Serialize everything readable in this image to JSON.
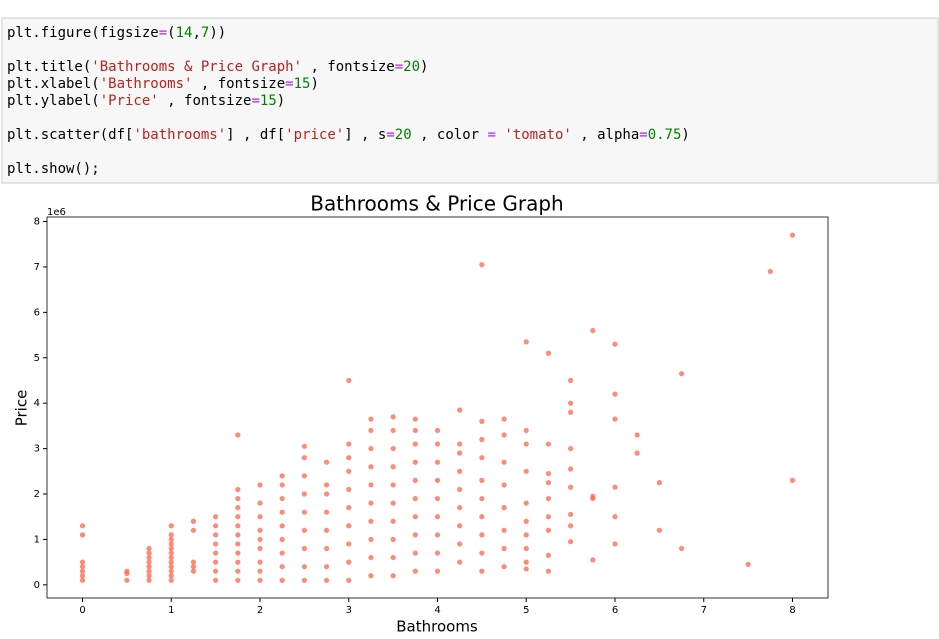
{
  "code": {
    "lines": [
      [
        {
          "text": "plt.figure(figsize",
          "color": "#000000"
        },
        {
          "text": "=",
          "color": "#aa22ff"
        },
        {
          "text": "(",
          "color": "#000000"
        },
        {
          "text": "14",
          "color": "#008000"
        },
        {
          "text": ",",
          "color": "#000000"
        },
        {
          "text": "7",
          "color": "#008000"
        },
        {
          "text": "))",
          "color": "#000000"
        }
      ],
      [],
      [
        {
          "text": "plt.title(",
          "color": "#000000"
        },
        {
          "text": "'Bathrooms & Price Graph'",
          "color": "#ba2121"
        },
        {
          "text": " , fontsize",
          "color": "#000000"
        },
        {
          "text": "=",
          "color": "#aa22ff"
        },
        {
          "text": "20",
          "color": "#008000"
        },
        {
          "text": ")",
          "color": "#000000"
        }
      ],
      [
        {
          "text": "plt.xlabel(",
          "color": "#000000"
        },
        {
          "text": "'Bathrooms'",
          "color": "#ba2121"
        },
        {
          "text": " , fontsize",
          "color": "#000000"
        },
        {
          "text": "=",
          "color": "#aa22ff"
        },
        {
          "text": "15",
          "color": "#008000"
        },
        {
          "text": ")",
          "color": "#000000"
        }
      ],
      [
        {
          "text": "plt.ylabel(",
          "color": "#000000"
        },
        {
          "text": "'Price'",
          "color": "#ba2121"
        },
        {
          "text": " , fontsize",
          "color": "#000000"
        },
        {
          "text": "=",
          "color": "#aa22ff"
        },
        {
          "text": "15",
          "color": "#008000"
        },
        {
          "text": ")",
          "color": "#000000"
        }
      ],
      [],
      [
        {
          "text": "plt.scatter(df[",
          "color": "#000000"
        },
        {
          "text": "'bathrooms'",
          "color": "#ba2121"
        },
        {
          "text": "] , df[",
          "color": "#000000"
        },
        {
          "text": "'price'",
          "color": "#ba2121"
        },
        {
          "text": "] , s",
          "color": "#000000"
        },
        {
          "text": "=",
          "color": "#aa22ff"
        },
        {
          "text": "20",
          "color": "#008000"
        },
        {
          "text": " , color ",
          "color": "#000000"
        },
        {
          "text": "=",
          "color": "#aa22ff"
        },
        {
          "text": " ",
          "color": "#000000"
        },
        {
          "text": "'tomato'",
          "color": "#ba2121"
        },
        {
          "text": " , alpha",
          "color": "#000000"
        },
        {
          "text": "=",
          "color": "#aa22ff"
        },
        {
          "text": "0.75",
          "color": "#008000"
        },
        {
          "text": ")",
          "color": "#000000"
        }
      ],
      [],
      [
        {
          "text": "plt.show();",
          "color": "#000000"
        }
      ]
    ]
  },
  "chart_data": {
    "type": "scatter",
    "title": "Bathrooms & Price Graph",
    "x_label": "Bathrooms",
    "y_label": "Price",
    "y_offset_label": "1e6",
    "xlim": [
      -0.4,
      8.4
    ],
    "ylim": [
      -0.29,
      8.1
    ],
    "xticks": [
      0,
      1,
      2,
      3,
      4,
      5,
      6,
      7,
      8
    ],
    "yticks": [
      0,
      1,
      2,
      3,
      4,
      5,
      6,
      7,
      8
    ],
    "series": [
      {
        "color": "tomato",
        "alpha": 0.75,
        "x": [
          0,
          0,
          0,
          0,
          0,
          0,
          0,
          0.5,
          0.5,
          0.5,
          0.75,
          0.75,
          0.75,
          0.75,
          0.75,
          0.75,
          0.75,
          0.75,
          1,
          1,
          1,
          1,
          1,
          1,
          1,
          1,
          1,
          1,
          1,
          1,
          1.25,
          1.25,
          1.25,
          1.25,
          1.25,
          1.5,
          1.5,
          1.5,
          1.5,
          1.5,
          1.5,
          1.5,
          1.5,
          1.75,
          1.75,
          1.75,
          1.75,
          1.75,
          1.75,
          1.75,
          1.75,
          1.75,
          1.75,
          1.75,
          1.75,
          2,
          2,
          2,
          2,
          2,
          2,
          2,
          2,
          2,
          2.25,
          2.25,
          2.25,
          2.25,
          2.25,
          2.25,
          2.25,
          2.25,
          2.25,
          2.5,
          2.5,
          2.5,
          2.5,
          2.5,
          2.5,
          2.5,
          2.5,
          2.5,
          2.75,
          2.75,
          2.75,
          2.75,
          2.75,
          2.75,
          2.75,
          2.75,
          3,
          3,
          3,
          3,
          3,
          3,
          3,
          3,
          3,
          3,
          3.25,
          3.25,
          3.25,
          3.25,
          3.25,
          3.25,
          3.25,
          3.25,
          3.25,
          3.25,
          3.5,
          3.5,
          3.5,
          3.5,
          3.5,
          3.5,
          3.5,
          3.5,
          3.5,
          3.5,
          3.75,
          3.75,
          3.75,
          3.75,
          3.75,
          3.75,
          3.75,
          3.75,
          3.75,
          3.75,
          4,
          4,
          4,
          4,
          4,
          4,
          4,
          4,
          4,
          4.25,
          4.25,
          4.25,
          4.25,
          4.25,
          4.25,
          4.25,
          4.25,
          4.25,
          4.5,
          4.5,
          4.5,
          4.5,
          4.5,
          4.5,
          4.5,
          4.5,
          4.5,
          4.5,
          4.75,
          4.75,
          4.75,
          4.75,
          4.75,
          4.75,
          4.75,
          4.75,
          5,
          5,
          5,
          5,
          5,
          5,
          5,
          5,
          5,
          5,
          5.25,
          5.25,
          5.25,
          5.25,
          5.25,
          5.25,
          5.25,
          5.25,
          5.25,
          5.5,
          5.5,
          5.5,
          5.5,
          5.5,
          5.5,
          5.5,
          5.5,
          5.5,
          5.75,
          5.75,
          5.75,
          5.75,
          6,
          6,
          6,
          6,
          6,
          6,
          6.25,
          6.25,
          6.5,
          6.5,
          6.75,
          6.75,
          7.5,
          7.75,
          8,
          8
        ],
        "values": [
          0.1,
          0.2,
          0.3,
          0.4,
          0.5,
          1.1,
          1.3,
          0.1,
          0.25,
          0.3,
          0.1,
          0.2,
          0.3,
          0.4,
          0.5,
          0.6,
          0.7,
          0.8,
          0.1,
          0.2,
          0.3,
          0.4,
          0.5,
          0.6,
          0.7,
          0.8,
          0.9,
          1.0,
          1.1,
          1.3,
          0.3,
          0.4,
          0.5,
          1.2,
          1.4,
          0.1,
          0.3,
          0.5,
          0.7,
          0.9,
          1.1,
          1.3,
          1.5,
          0.1,
          0.3,
          0.5,
          0.7,
          0.9,
          1.1,
          1.3,
          1.5,
          1.7,
          1.9,
          2.1,
          3.3,
          0.1,
          0.3,
          0.5,
          0.8,
          1.0,
          1.2,
          1.5,
          1.8,
          2.2,
          0.1,
          0.4,
          0.7,
          1.0,
          1.3,
          1.6,
          1.9,
          2.2,
          2.4,
          0.1,
          0.4,
          0.8,
          1.2,
          1.6,
          2.0,
          2.4,
          2.8,
          3.05,
          0.1,
          0.4,
          0.8,
          1.2,
          1.6,
          2.0,
          2.2,
          2.7,
          0.1,
          0.5,
          0.9,
          1.3,
          1.7,
          2.1,
          2.5,
          2.8,
          3.1,
          4.5,
          0.2,
          0.6,
          1.0,
          1.4,
          1.8,
          2.2,
          2.6,
          3.0,
          3.4,
          3.65,
          0.2,
          0.6,
          1.0,
          1.4,
          1.8,
          2.2,
          2.6,
          3.0,
          3.4,
          3.7,
          0.3,
          0.7,
          1.1,
          1.5,
          1.9,
          2.3,
          2.7,
          3.1,
          3.4,
          3.65,
          0.3,
          0.7,
          1.1,
          1.5,
          1.9,
          2.3,
          2.7,
          3.1,
          3.4,
          0.5,
          0.9,
          1.3,
          1.7,
          2.1,
          2.5,
          2.9,
          3.1,
          3.85,
          0.3,
          0.7,
          1.1,
          1.5,
          1.9,
          2.3,
          2.8,
          3.2,
          3.6,
          7.05,
          0.4,
          0.8,
          1.2,
          1.7,
          2.2,
          2.7,
          3.3,
          3.65,
          0.35,
          0.5,
          0.8,
          1.1,
          1.4,
          1.8,
          2.5,
          3.1,
          3.4,
          5.35,
          0.3,
          0.65,
          1.2,
          1.5,
          1.9,
          2.25,
          2.45,
          3.1,
          5.1,
          0.95,
          1.3,
          1.55,
          2.15,
          2.55,
          3.0,
          3.8,
          4.0,
          4.5,
          0.55,
          1.9,
          1.95,
          5.6,
          0.9,
          1.5,
          2.15,
          3.65,
          4.2,
          5.3,
          2.9,
          3.3,
          1.2,
          2.25,
          0.8,
          4.65,
          0.45,
          6.9,
          2.3,
          7.7
        ]
      }
    ]
  }
}
